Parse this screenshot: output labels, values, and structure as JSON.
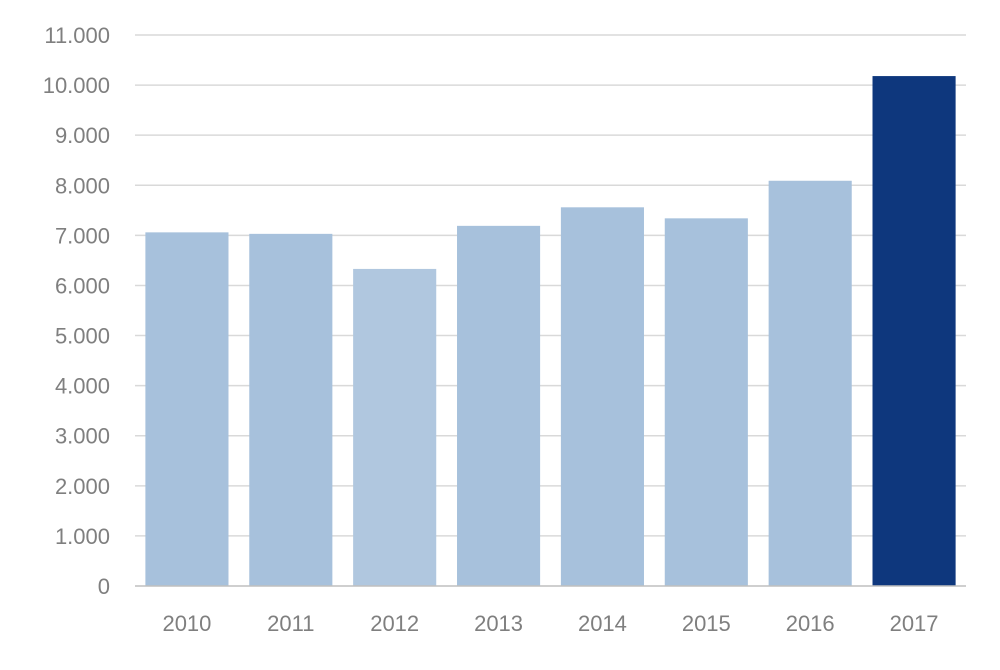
{
  "chart_data": {
    "type": "bar",
    "categories": [
      "2010",
      "2011",
      "2012",
      "2013",
      "2014",
      "2015",
      "2016",
      "2017"
    ],
    "values": [
      7060,
      7030,
      6330,
      7190,
      7560,
      7340,
      8090,
      10180
    ],
    "y_ticks": [
      "0",
      "1.000",
      "2.000",
      "3.000",
      "4.000",
      "5.000",
      "6.000",
      "7.000",
      "8.000",
      "9.000",
      "10.000",
      "11.000"
    ],
    "ylim": [
      0,
      11000
    ],
    "grid": true,
    "legend": "none",
    "title": "",
    "xlabel": "",
    "ylabel": "",
    "colors": {
      "bar": "#a7c1dc",
      "bar_2012": "#b0c7df",
      "highlight": "#0e377d",
      "grid": "#d9d9d9",
      "axis": "#bfbfbf",
      "label": "#7f7f7f"
    },
    "highlight_index": 7
  }
}
